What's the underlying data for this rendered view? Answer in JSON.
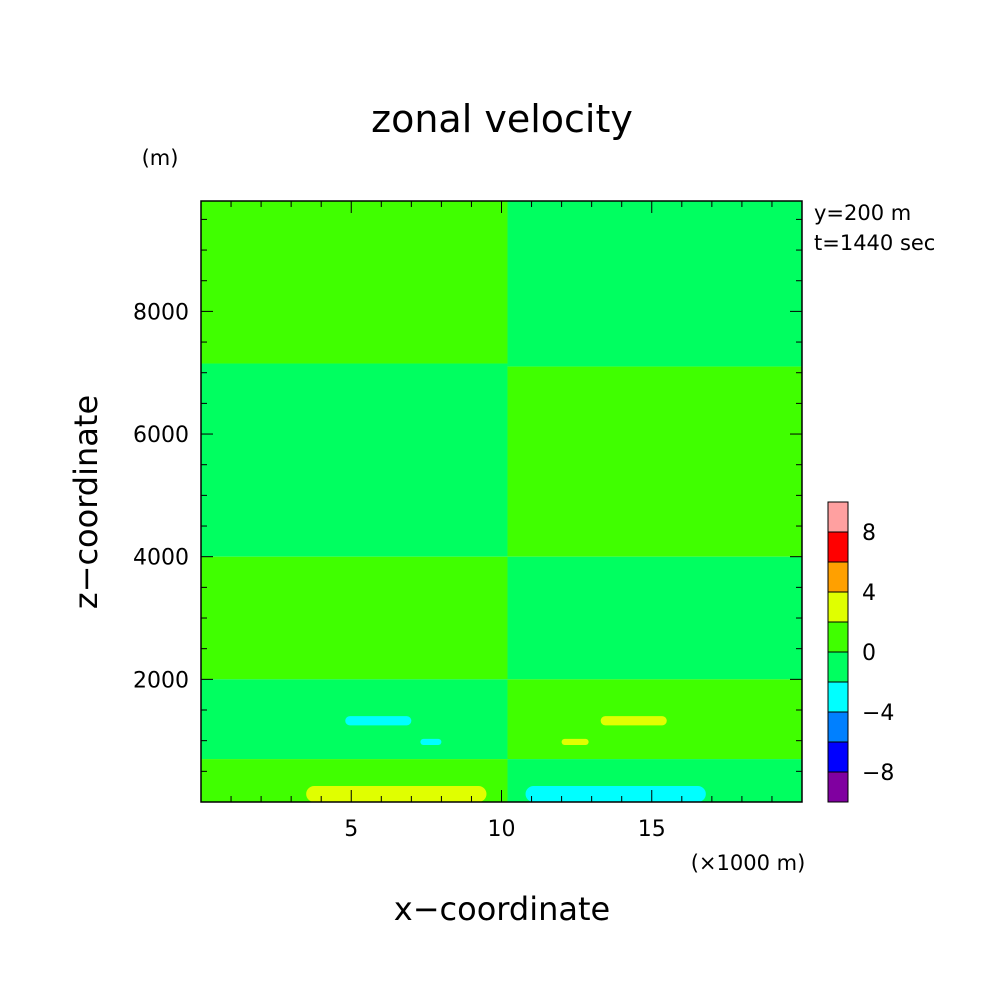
{
  "chart_data": {
    "type": "heatmap",
    "title": "zonal velocity",
    "xlabel": "x−coordinate",
    "ylabel": "z−coordinate",
    "x_unit_label": "(×1000 m)",
    "y_unit_label": "(m)",
    "annotations": [
      "y=200 m",
      "t=1440 sec"
    ],
    "xlim": [
      0,
      20
    ],
    "ylim": [
      0,
      9800
    ],
    "x_ticks": [
      5,
      10,
      15
    ],
    "x_tick_labels": [
      "5",
      "10",
      "15"
    ],
    "y_ticks": [
      2000,
      4000,
      6000,
      8000
    ],
    "y_tick_labels": [
      "2000",
      "4000",
      "6000",
      "8000"
    ],
    "grid": false,
    "legend": {
      "placement": "right",
      "levels": [
        -10,
        -8,
        -6,
        -4,
        -2,
        0,
        2,
        4,
        6,
        8,
        10
      ],
      "tick_values": [
        -8,
        -4,
        0,
        4,
        8
      ],
      "tick_labels": [
        "−8",
        "−4",
        "0",
        "4",
        "8"
      ],
      "colors": [
        "#8000a0",
        "#0000ff",
        "#0080ff",
        "#00ffff",
        "#00ff60",
        "#40ff00",
        "#e0ff00",
        "#ffa000",
        "#ff0000",
        "#ffa0a0"
      ]
    },
    "regions": [
      {
        "range": [
          0,
          2
        ],
        "x": [
          0,
          10.2
        ],
        "z": [
          7150,
          9800
        ]
      },
      {
        "range": [
          -2,
          0
        ],
        "x": [
          10.2,
          20
        ],
        "z": [
          7100,
          9800
        ]
      },
      {
        "range": [
          -2,
          0
        ],
        "x": [
          0,
          10.2
        ],
        "z": [
          4000,
          7150
        ]
      },
      {
        "range": [
          0,
          2
        ],
        "x": [
          10.2,
          20
        ],
        "z": [
          4000,
          7100
        ]
      },
      {
        "range": [
          0,
          2
        ],
        "x": [
          0,
          10.2
        ],
        "z": [
          2000,
          4000
        ]
      },
      {
        "range": [
          -2,
          0
        ],
        "x": [
          10.2,
          20
        ],
        "z": [
          2000,
          4000
        ]
      },
      {
        "range": [
          -2,
          0
        ],
        "x": [
          0,
          10.2
        ],
        "z": [
          700,
          2000
        ]
      },
      {
        "range": [
          0,
          2
        ],
        "x": [
          10.2,
          20
        ],
        "z": [
          700,
          2000
        ]
      },
      {
        "range": [
          0,
          2
        ],
        "x": [
          0,
          10.2
        ],
        "z": [
          0,
          700
        ]
      },
      {
        "range": [
          -2,
          0
        ],
        "x": [
          10.2,
          20
        ],
        "z": [
          0,
          700
        ]
      },
      {
        "range": [
          2,
          4
        ],
        "x": [
          3.5,
          9.5
        ],
        "z": [
          0,
          260
        ]
      },
      {
        "range": [
          -4,
          -2
        ],
        "x": [
          10.8,
          16.8
        ],
        "z": [
          0,
          260
        ]
      },
      {
        "range": [
          -4,
          -2
        ],
        "x": [
          4.8,
          7.0
        ],
        "z": [
          1250,
          1400
        ]
      },
      {
        "range": [
          -4,
          -2
        ],
        "x": [
          7.3,
          8.0
        ],
        "z": [
          930,
          1030
        ]
      },
      {
        "range": [
          2,
          4
        ],
        "x": [
          12.0,
          12.9
        ],
        "z": [
          930,
          1030
        ]
      },
      {
        "range": [
          2,
          4
        ],
        "x": [
          13.3,
          15.5
        ],
        "z": [
          1250,
          1400
        ]
      }
    ]
  }
}
